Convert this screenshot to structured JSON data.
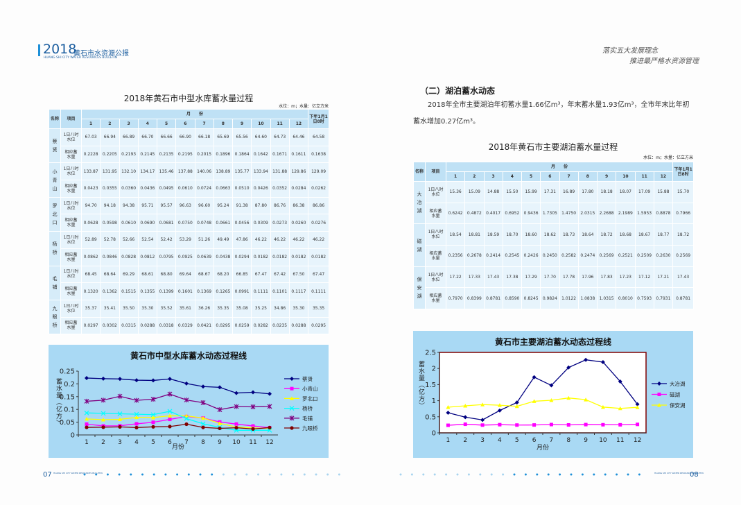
{
  "header": {
    "year": "2018",
    "title": "黄石市水资源公报",
    "subtitle": "HUANG SHI CITY WATER RESOURCES BULLETIN",
    "slogan": [
      "落实五大发展理念",
      "推进最严格水资源管理"
    ]
  },
  "section": {
    "heading": "（二）湖泊蓄水动态",
    "text": "2018年全市主要湖泊年初蓄水量1.66亿m³，年末蓄水量1.93亿m³，全市年末比年初蓄水增加0.27亿m³。"
  },
  "tables": [
    {
      "title": "2018年黄石市中型水库蓄水量过程",
      "unit": "水位：m；水量：亿立方米",
      "head": {
        "name": "名称",
        "item": "项目",
        "month": "月　　份",
        "next": "下年1月1日8时",
        "months": [
          "1",
          "2",
          "3",
          "4",
          "5",
          "6",
          "7",
          "8",
          "9",
          "10",
          "11",
          "12"
        ]
      },
      "rows": [
        {
          "name": "蔡贤",
          "items": [
            {
              "label": "1日八时水位",
              "values": [
                "67.03",
                "66.94",
                "66.89",
                "66.70",
                "66.66",
                "66.90",
                "66.18",
                "65.69",
                "65.56",
                "64.60",
                "64.73",
                "64.46",
                "64.58"
              ]
            },
            {
              "label": "相应蓄水量",
              "values": [
                "0.2228",
                "0.2205",
                "0.2193",
                "0.2145",
                "0.2135",
                "0.2195",
                "0.2015",
                "0.1896",
                "0.1864",
                "0.1642",
                "0.1671",
                "0.1611",
                "0.1638"
              ]
            }
          ]
        },
        {
          "name": "小青山",
          "items": [
            {
              "label": "1日八时水位",
              "values": [
                "133.87",
                "131.95",
                "132.10",
                "134.17",
                "135.46",
                "137.88",
                "140.06",
                "138.89",
                "135.77",
                "133.94",
                "131.88",
                "129.86",
                "129.09"
              ]
            },
            {
              "label": "相应蓄水量",
              "values": [
                "0.0423",
                "0.0355",
                "0.0360",
                "0.0436",
                "0.0495",
                "0.0610",
                "0.0724",
                "0.0663",
                "0.0510",
                "0.0426",
                "0.0352",
                "0.0284",
                "0.0262"
              ]
            }
          ]
        },
        {
          "name": "罗北口",
          "items": [
            {
              "label": "1日八时水位",
              "values": [
                "94.70",
                "94.18",
                "94.38",
                "95.71",
                "95.57",
                "96.63",
                "96.60",
                "95.24",
                "91.38",
                "87.80",
                "86.76",
                "86.38",
                "86.86"
              ]
            },
            {
              "label": "相应蓄水量",
              "values": [
                "0.0628",
                "0.0598",
                "0.0610",
                "0.0690",
                "0.0681",
                "0.0750",
                "0.0748",
                "0.0661",
                "0.0456",
                "0.0309",
                "0.0273",
                "0.0260",
                "0.0276"
              ]
            }
          ]
        },
        {
          "name": "杨桥",
          "items": [
            {
              "label": "1日八时水位",
              "values": [
                "52.89",
                "52.78",
                "52.66",
                "52.54",
                "52.42",
                "53.29",
                "51.26",
                "49.49",
                "47.86",
                "46.22",
                "46.22",
                "46.22",
                "46.22"
              ]
            },
            {
              "label": "相应蓄水量",
              "values": [
                "0.0862",
                "0.0846",
                "0.0828",
                "0.0812",
                "0.0795",
                "0.0925",
                "0.0639",
                "0.0438",
                "0.0294",
                "0.0182",
                "0.0182",
                "0.0182",
                "0.0182"
              ]
            }
          ]
        },
        {
          "name": "毛铺",
          "items": [
            {
              "label": "1日八时水位",
              "values": [
                "68.45",
                "68.64",
                "69.29",
                "68.61",
                "68.80",
                "69.64",
                "68.67",
                "68.20",
                "66.85",
                "67.47",
                "67.42",
                "67.50",
                "67.47"
              ]
            },
            {
              "label": "相应蓄水量",
              "values": [
                "0.1320",
                "0.1362",
                "0.1515",
                "0.1355",
                "0.1399",
                "0.1601",
                "0.1369",
                "0.1265",
                "0.0991",
                "0.1111",
                "0.1101",
                "0.1117",
                "0.1111"
              ]
            }
          ]
        },
        {
          "name": "九眼桥",
          "items": [
            {
              "label": "1日八时水位",
              "values": [
                "35.37",
                "35.41",
                "35.50",
                "35.30",
                "35.52",
                "35.61",
                "36.26",
                "35.35",
                "35.08",
                "35.25",
                "34.86",
                "35.30",
                "35.35"
              ]
            },
            {
              "label": "相应蓄水量",
              "values": [
                "0.0297",
                "0.0302",
                "0.0315",
                "0.0288",
                "0.0318",
                "0.0329",
                "0.0421",
                "0.0295",
                "0.0259",
                "0.0282",
                "0.0235",
                "0.0288",
                "0.0295"
              ]
            }
          ]
        }
      ]
    },
    {
      "title": "2018年黄石市主要湖泊蓄水量过程",
      "unit": "水位：m；水量：亿立方米",
      "head": {
        "name": "名称",
        "item": "项目",
        "month": "月　　份",
        "next": "下年1月1日8时",
        "months": [
          "1",
          "2",
          "3",
          "4",
          "5",
          "6",
          "7",
          "8",
          "9",
          "10",
          "11",
          "12"
        ]
      },
      "rows": [
        {
          "name": "大冶湖",
          "items": [
            {
              "label": "1日八时水位",
              "values": [
                "15.36",
                "15.09",
                "14.88",
                "15.50",
                "15.99",
                "17.31",
                "16.89",
                "17.80",
                "18.18",
                "18.07",
                "17.09",
                "15.88",
                "15.70"
              ]
            },
            {
              "label": "相应蓄水量",
              "values": [
                "0.6242",
                "0.4872",
                "0.4017",
                "0.6952",
                "0.9436",
                "1.7305",
                "1.4750",
                "2.0315",
                "2.2688",
                "2.1989",
                "1.5953",
                "0.8878",
                "0.7966"
              ]
            }
          ]
        },
        {
          "name": "磁湖",
          "items": [
            {
              "label": "1日八时水位",
              "values": [
                "18.54",
                "18.81",
                "18.59",
                "18.70",
                "18.60",
                "18.62",
                "18.73",
                "18.64",
                "18.72",
                "18.68",
                "18.67",
                "18.77",
                "18.72"
              ]
            },
            {
              "label": "相应蓄水量",
              "values": [
                "0.2356",
                "0.2678",
                "0.2414",
                "0.2545",
                "0.2426",
                "0.2450",
                "0.2582",
                "0.2474",
                "0.2569",
                "0.2521",
                "0.2509",
                "0.2630",
                "0.2569"
              ]
            }
          ]
        },
        {
          "name": "保安湖",
          "items": [
            {
              "label": "1日八时水位",
              "values": [
                "17.22",
                "17.33",
                "17.43",
                "17.38",
                "17.29",
                "17.70",
                "17.78",
                "17.96",
                "17.83",
                "17.23",
                "17.12",
                "17.21",
                "17.43"
              ]
            },
            {
              "label": "相应蓄水量",
              "values": [
                "0.7970",
                "0.8399",
                "0.8781",
                "0.8590",
                "0.8245",
                "0.9824",
                "1.0122",
                "1.0838",
                "1.0315",
                "0.8010",
                "0.7593",
                "0.7931",
                "0.8781"
              ]
            }
          ]
        }
      ]
    }
  ],
  "chart_data": [
    {
      "type": "line",
      "title": "黄石市中型水库蓄水动态过程线",
      "y_label": "蓄水量（亿方）",
      "x_label": "月份",
      "categories": [
        "1",
        "2",
        "3",
        "4",
        "5",
        "6",
        "7",
        "8",
        "9",
        "10",
        "11",
        "12"
      ],
      "ylim": [
        0,
        0.25
      ],
      "yticks": [
        0,
        0.05,
        0.1,
        0.15,
        0.2,
        0.25
      ],
      "legend": "right",
      "plot_background": "none",
      "series": [
        {
          "name": "蔡贤",
          "color": "#000080",
          "marker": "diamond",
          "values": [
            0.2228,
            0.2205,
            0.2193,
            0.2145,
            0.2135,
            0.2195,
            0.2015,
            0.1896,
            0.1864,
            0.1642,
            0.1671,
            0.1611
          ]
        },
        {
          "name": "小青山",
          "color": "#ff00ff",
          "marker": "square",
          "values": [
            0.0423,
            0.0355,
            0.036,
            0.0436,
            0.0495,
            0.061,
            0.0724,
            0.0663,
            0.051,
            0.0426,
            0.0352,
            0.0284
          ]
        },
        {
          "name": "罗北口",
          "color": "#ffff00",
          "marker": "triangle",
          "values": [
            0.0628,
            0.0598,
            0.061,
            0.069,
            0.0681,
            0.075,
            0.0748,
            0.0661,
            0.0456,
            0.0309,
            0.0273,
            0.026
          ]
        },
        {
          "name": "杨桥",
          "color": "#00ffff",
          "marker": "x",
          "values": [
            0.0862,
            0.0846,
            0.0828,
            0.0812,
            0.0795,
            0.0925,
            0.0639,
            0.0438,
            0.0294,
            0.0182,
            0.0182,
            0.0182
          ]
        },
        {
          "name": "毛铺",
          "color": "#800080",
          "marker": "star",
          "values": [
            0.132,
            0.1362,
            0.1515,
            0.1355,
            0.1399,
            0.1601,
            0.1369,
            0.1265,
            0.0991,
            0.1111,
            0.1101,
            0.1117
          ]
        },
        {
          "name": "九眼桥",
          "color": "#800000",
          "marker": "circle",
          "values": [
            0.0297,
            0.0302,
            0.0315,
            0.0288,
            0.0318,
            0.0329,
            0.0421,
            0.0295,
            0.0259,
            0.0282,
            0.0235,
            0.0288
          ]
        }
      ]
    },
    {
      "type": "line",
      "title": "黄石市主要湖泊蓄水动态过程线",
      "y_label": "蓄水量（亿方）",
      "x_label": "月份",
      "categories": [
        "1",
        "2",
        "3",
        "4",
        "5",
        "6",
        "7",
        "8",
        "9",
        "10",
        "11",
        "12"
      ],
      "ylim": [
        0,
        2.5
      ],
      "yticks": [
        0,
        0.5,
        1,
        1.5,
        2,
        2.5
      ],
      "legend": "right",
      "plot_background": "#ffffff",
      "series": [
        {
          "name": "大冶湖",
          "color": "#000080",
          "marker": "diamond",
          "values": [
            0.6242,
            0.4872,
            0.4017,
            0.6952,
            0.9436,
            1.7305,
            1.475,
            2.0315,
            2.2688,
            2.1989,
            1.5953,
            0.8878
          ]
        },
        {
          "name": "磁湖",
          "color": "#ff00ff",
          "marker": "square",
          "values": [
            0.2356,
            0.2678,
            0.2414,
            0.2545,
            0.2426,
            0.245,
            0.2582,
            0.2474,
            0.2569,
            0.2521,
            0.2509,
            0.263
          ]
        },
        {
          "name": "保安湖",
          "color": "#ffff00",
          "marker": "triangle",
          "values": [
            0.797,
            0.8399,
            0.8781,
            0.859,
            0.8245,
            0.9824,
            1.0122,
            1.0838,
            1.0315,
            0.801,
            0.7593,
            0.7931
          ]
        }
      ]
    }
  ],
  "footer": {
    "left_page": "07",
    "right_page": "08",
    "note": "HUANG SHI CITY WATER RESOURCES BULLETIN"
  }
}
